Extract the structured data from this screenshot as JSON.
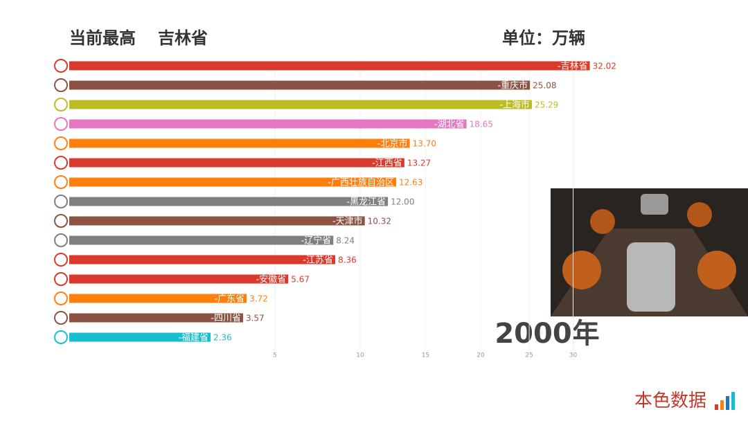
{
  "chart_data": {
    "type": "bar",
    "orientation": "horizontal",
    "title": "当前最高",
    "leader": "吉林省",
    "unit": "单位：万辆",
    "year": "2000年",
    "brand": "本色数据",
    "scale": "sqrt",
    "categories": [
      "-吉林省",
      "-重庆市",
      "-上海市",
      "-湖北省",
      "-北京市",
      "-江西省",
      "-广西壮族自治区",
      "-黑龙江省",
      "-天津市",
      "-辽宁省",
      "-江苏省",
      "-安徽省",
      "-广东省",
      "-四川省",
      "-福建省"
    ],
    "values": [
      32.02,
      25.08,
      25.29,
      18.65,
      13.7,
      13.27,
      12.63,
      12.0,
      10.32,
      8.24,
      8.36,
      5.67,
      3.72,
      3.57,
      2.36
    ],
    "value_labels": [
      "32.02",
      "25.08",
      "25.29",
      "18.65",
      "13.70",
      "13.27",
      "12.63",
      "12.00",
      "10.32",
      "8.24",
      "8.36",
      "5.67",
      "3.72",
      "3.57",
      "2.36"
    ],
    "colors": [
      "#d93a2b",
      "#8c5243",
      "#bcbd22",
      "#e377c2",
      "#ff7f0e",
      "#d93a2b",
      "#ff7f0e",
      "#7f7f7f",
      "#8c5243",
      "#7f7f7f",
      "#d93a2b",
      "#d93a2b",
      "#ff7f0e",
      "#8c5243",
      "#17becf"
    ],
    "xlim": [
      0,
      33
    ],
    "xticks": [
      5,
      10,
      15,
      20,
      25,
      30
    ],
    "grid": true
  }
}
